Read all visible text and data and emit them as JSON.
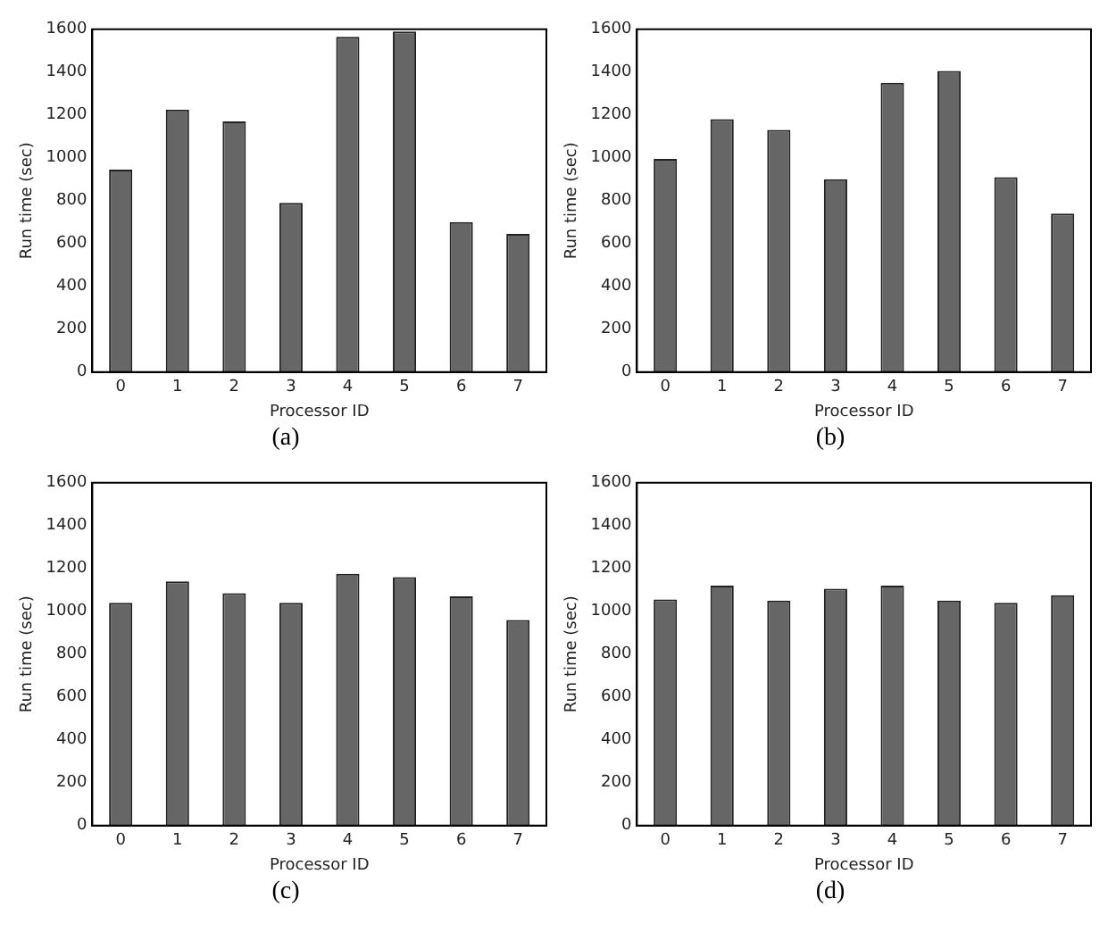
{
  "chart_data": [
    {
      "type": "bar",
      "xlabel": "Processor ID",
      "ylabel": "Run time (sec)",
      "annotations": [
        "(a)"
      ],
      "categories": [
        "0",
        "1",
        "2",
        "3",
        "4",
        "5",
        "6",
        "7"
      ],
      "values": [
        945,
        1225,
        1170,
        790,
        1565,
        1590,
        700,
        645
      ],
      "color": "#666666",
      "ylim": [
        0,
        1600
      ],
      "yticks": [
        0,
        200,
        400,
        600,
        800,
        1000,
        1200,
        1400,
        1600
      ],
      "grid": false
    },
    {
      "type": "bar",
      "xlabel": "Processor ID",
      "ylabel": "Run time (sec)",
      "annotations": [
        "(b)"
      ],
      "categories": [
        "0",
        "1",
        "2",
        "3",
        "4",
        "5",
        "6",
        "7"
      ],
      "values": [
        995,
        1180,
        1130,
        900,
        1350,
        1405,
        910,
        740
      ],
      "color": "#666666",
      "ylim": [
        0,
        1600
      ],
      "yticks": [
        0,
        200,
        400,
        600,
        800,
        1000,
        1200,
        1400,
        1600
      ],
      "grid": false
    },
    {
      "type": "bar",
      "xlabel": "Processor ID",
      "ylabel": "Run time (sec)",
      "annotations": [
        "(c)"
      ],
      "categories": [
        "0",
        "1",
        "2",
        "3",
        "4",
        "5",
        "6",
        "7"
      ],
      "values": [
        1040,
        1140,
        1085,
        1040,
        1175,
        1160,
        1070,
        960
      ],
      "color": "#666666",
      "ylim": [
        0,
        1600
      ],
      "yticks": [
        0,
        200,
        400,
        600,
        800,
        1000,
        1200,
        1400,
        1600
      ],
      "grid": false
    },
    {
      "type": "bar",
      "xlabel": "Processor ID",
      "ylabel": "Run time (sec)",
      "annotations": [
        "(d)"
      ],
      "categories": [
        "0",
        "1",
        "2",
        "3",
        "4",
        "5",
        "6",
        "7"
      ],
      "values": [
        1055,
        1120,
        1050,
        1105,
        1120,
        1050,
        1040,
        1075
      ],
      "color": "#666666",
      "ylim": [
        0,
        1600
      ],
      "yticks": [
        0,
        200,
        400,
        600,
        800,
        1000,
        1200,
        1400,
        1600
      ],
      "grid": false
    }
  ]
}
